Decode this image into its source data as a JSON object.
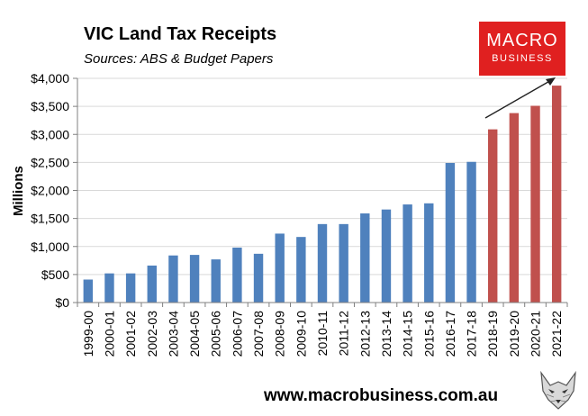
{
  "chart_data": {
    "type": "bar",
    "title": "VIC Land Tax Receipts",
    "subtitle": "Sources: ABS & Budget Papers",
    "ylabel": "Millions",
    "xlabel": "",
    "ylim": [
      0,
      4000
    ],
    "yticks": [
      "$0",
      "$500",
      "$1,000",
      "$1,500",
      "$2,000",
      "$2,500",
      "$3,000",
      "$3,500",
      "$4,000"
    ],
    "categories": [
      "1999-00",
      "2000-01",
      "2001-02",
      "2002-03",
      "2003-04",
      "2004-05",
      "2005-06",
      "2006-07",
      "2007-08",
      "2008-09",
      "2009-10",
      "2010-11",
      "2011-12",
      "2012-13",
      "2013-14",
      "2014-15",
      "2015-16",
      "2016-17",
      "2017-18",
      "2018-19",
      "2019-20",
      "2020-21",
      "2021-22"
    ],
    "values": [
      410,
      520,
      520,
      660,
      840,
      850,
      770,
      980,
      870,
      1230,
      1170,
      1400,
      1400,
      1590,
      1660,
      1750,
      1770,
      2490,
      2510,
      3090,
      3380,
      3510,
      3870
    ],
    "bar_colors": [
      "#4f81bd",
      "#4f81bd",
      "#4f81bd",
      "#4f81bd",
      "#4f81bd",
      "#4f81bd",
      "#4f81bd",
      "#4f81bd",
      "#4f81bd",
      "#4f81bd",
      "#4f81bd",
      "#4f81bd",
      "#4f81bd",
      "#4f81bd",
      "#4f81bd",
      "#4f81bd",
      "#4f81bd",
      "#4f81bd",
      "#4f81bd",
      "#c0504d",
      "#c0504d",
      "#c0504d",
      "#c0504d"
    ],
    "grid": true,
    "legend": "none"
  },
  "logo": {
    "main": "MACRO",
    "sub": "BUSINESS"
  },
  "website": "www.macrobusiness.com.au"
}
